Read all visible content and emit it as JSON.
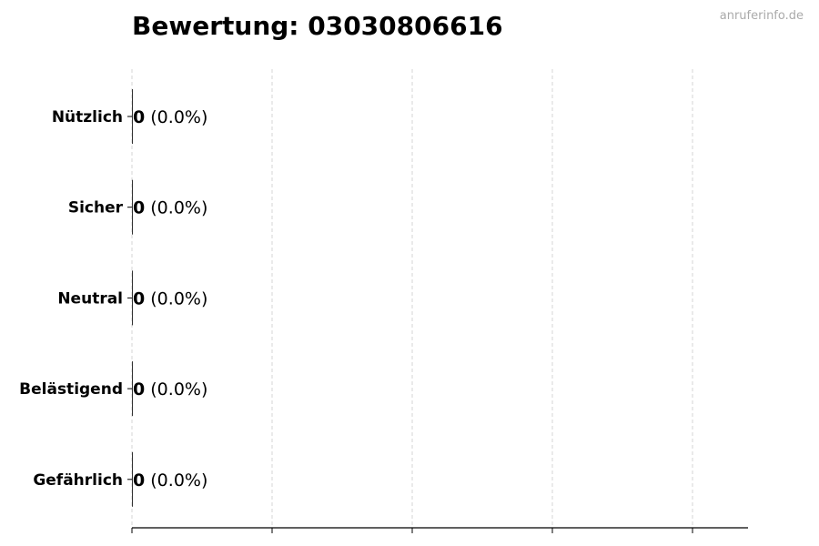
{
  "chart_data": {
    "type": "bar",
    "orientation": "horizontal",
    "title": "Bewertung: 03030806616",
    "categories": [
      "Nützlich",
      "Sicher",
      "Neutral",
      "Belästigend",
      "Gefährlich"
    ],
    "values": [
      0,
      0,
      0,
      0,
      0
    ],
    "percent_labels": [
      "(0.0%)",
      "(0.0%)",
      "(0.0%)",
      "(0.0%)",
      "(0.0%)"
    ],
    "xlabel": "",
    "ylabel": "",
    "x_tick_count": 5,
    "grid": "vertical dashed",
    "colors": {
      "bar": "#000000",
      "grid": "#cccccc",
      "axis": "#000000"
    }
  },
  "watermark": "anruferinfo.de"
}
